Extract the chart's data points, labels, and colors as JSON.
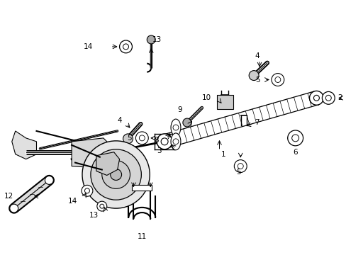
{
  "background_color": "#ffffff",
  "fig_width": 4.89,
  "fig_height": 3.6,
  "dpi": 100,
  "line_color": "#000000",
  "text_color": "#000000",
  "font_size": 7.5
}
